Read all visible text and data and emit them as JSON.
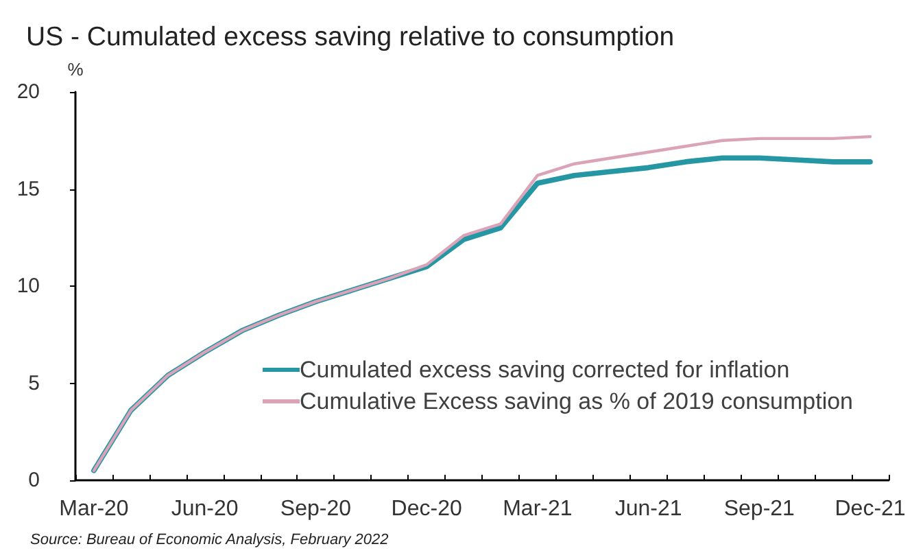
{
  "chart_data": {
    "type": "line",
    "title": "US - Cumulated excess saving relative to consumption",
    "ylabel": "%",
    "categories": [
      "Mar-20",
      null,
      null,
      "Jun-20",
      null,
      null,
      "Sep-20",
      null,
      null,
      "Dec-20",
      null,
      null,
      "Mar-21",
      null,
      null,
      "Jun-21",
      null,
      null,
      "Sep-21",
      null,
      null,
      "Dec-21"
    ],
    "series": [
      {
        "name": "Cumulated excess saving corrected for inflation",
        "color": "#2596a4",
        "values": [
          0.5,
          3.6,
          5.4,
          6.6,
          7.7,
          8.5,
          9.2,
          9.8,
          10.4,
          11.0,
          12.4,
          13.0,
          15.3,
          15.7,
          15.9,
          16.1,
          16.4,
          16.6,
          16.6,
          16.5,
          16.4,
          16.4
        ]
      },
      {
        "name": "Cumulative Excess saving as % of 2019 consumption",
        "color": "#dba3b8",
        "values": [
          0.5,
          3.6,
          5.4,
          6.6,
          7.7,
          8.5,
          9.2,
          9.8,
          10.4,
          11.1,
          12.6,
          13.2,
          15.7,
          16.3,
          16.6,
          16.9,
          17.2,
          17.5,
          17.6,
          17.6,
          17.6,
          17.7
        ]
      }
    ],
    "ylim": [
      0,
      20
    ],
    "yticks": [
      0,
      5,
      10,
      15,
      20
    ],
    "grid": false,
    "legend": "bottom right",
    "marker": "none",
    "line_style": "solid",
    "annotations": [
      "Source: Bureau of Economic Analysis, February 2022"
    ]
  }
}
